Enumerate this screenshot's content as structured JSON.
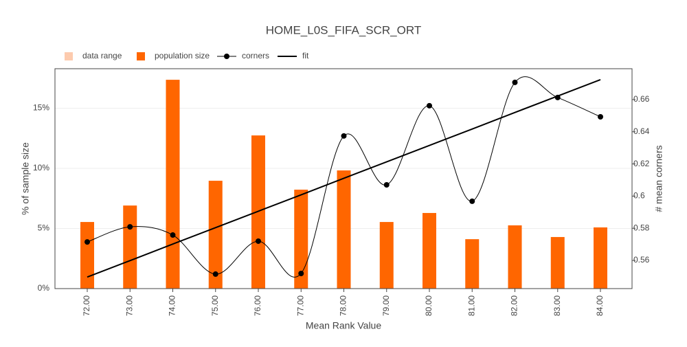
{
  "chart_data": {
    "type": "bar",
    "title": "HOME_L0S_FIFA_SCR_ORT",
    "x_label": "Mean Rank Value",
    "y_label": "% of sample size",
    "y2_label": "# mean corners",
    "categories": [
      "72.00",
      "73.00",
      "74.00",
      "75.00",
      "76.00",
      "77.00",
      "78.00",
      "79.00",
      "80.00",
      "81.00",
      "82.00",
      "83.00",
      "84.00"
    ],
    "series": [
      {
        "name": "data range",
        "type": "bar",
        "color": "#fdcbae",
        "values": [
          null,
          null,
          null,
          null,
          null,
          null,
          null,
          null,
          null,
          null,
          null,
          null,
          null
        ]
      },
      {
        "name": "population size",
        "type": "bar",
        "color": "#ff6600",
        "values": [
          5.54,
          6.91,
          17.37,
          8.97,
          12.74,
          8.23,
          9.83,
          5.54,
          6.29,
          4.11,
          5.26,
          4.29,
          5.09
        ]
      },
      {
        "name": "corners",
        "type": "spline",
        "axis": "y2",
        "color": "#000000",
        "values": [
          0.5715,
          0.5809,
          0.5758,
          0.5515,
          0.572,
          0.5519,
          0.6374,
          0.607,
          0.6562,
          0.5968,
          0.6707,
          0.6613,
          0.6493
        ]
      },
      {
        "name": "fit",
        "type": "line",
        "axis": "y2",
        "color": "#000000",
        "values": [
          0.5497,
          0.5599,
          0.5702,
          0.5804,
          0.5906,
          0.6008,
          0.6111,
          0.6213,
          0.6315,
          0.6417,
          0.652,
          0.6622,
          0.6724
        ]
      }
    ],
    "ylim": [
      0,
      18.29
    ],
    "yticks": [
      {
        "value": 0,
        "label": "0%"
      },
      {
        "value": 5,
        "label": "5%"
      },
      {
        "value": 10,
        "label": "10%"
      },
      {
        "value": 15,
        "label": "15%"
      }
    ],
    "y2lim": [
      0.5425,
      0.6792
    ],
    "y2ticks": [
      0.56,
      0.58,
      0.6,
      0.62,
      0.64,
      0.66
    ],
    "grid": true
  }
}
